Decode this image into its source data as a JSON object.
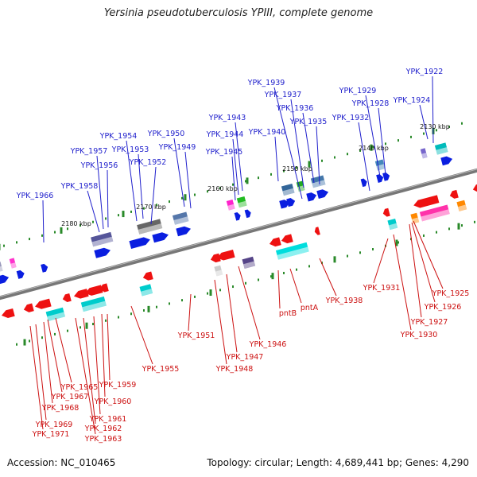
{
  "title": "Yersinia pseudotuberculosis YPIII, complete genome",
  "footer": {
    "accession": "Accession: NC_010465",
    "topology": "Topology: circular; Length: 4,689,441 bp; Genes: 4,290"
  },
  "colors": {
    "forward_label": "#1f1fcc",
    "reverse_label": "#cc1111",
    "forward_gene": "#0a1ee0",
    "reverse_gene": "#ee1111",
    "axis": "#777777",
    "tick": "#2a8a2a"
  },
  "scale_labels": [
    "2130 kbp",
    "2140 kbp",
    "2150 kbp",
    "2160 kbp",
    "2170 kbp",
    "2180 kbp"
  ],
  "top_labels": [
    "YPK_1922",
    "YPK_1924",
    "YPK_1928",
    "YPK_1929",
    "YPK_1932",
    "YPK_1935",
    "YPK_1936",
    "YPK_1937",
    "YPK_1939",
    "YPK_1940",
    "YPK_1943",
    "YPK_1944",
    "YPK_1945",
    "YPK_1949",
    "YPK_1950",
    "YPK_1952",
    "YPK_1953",
    "YPK_1954",
    "YPK_1956",
    "YPK_1957",
    "YPK_1958",
    "YPK_1966"
  ],
  "bottom_labels": [
    "YPK_1925",
    "YPK_1926",
    "YPK_1927",
    "YPK_1930",
    "YPK_1931",
    "YPK_1938",
    "pntA",
    "pntB",
    "YPK_1946",
    "YPK_1947",
    "YPK_1948",
    "YPK_1951",
    "YPK_1955",
    "YPK_1959",
    "YPK_1960",
    "YPK_1961",
    "YPK_1962",
    "YPK_1963",
    "YPK_1965",
    "YPK_1967",
    "YPK_1968",
    "YPK_1969",
    "YPK_1971"
  ]
}
